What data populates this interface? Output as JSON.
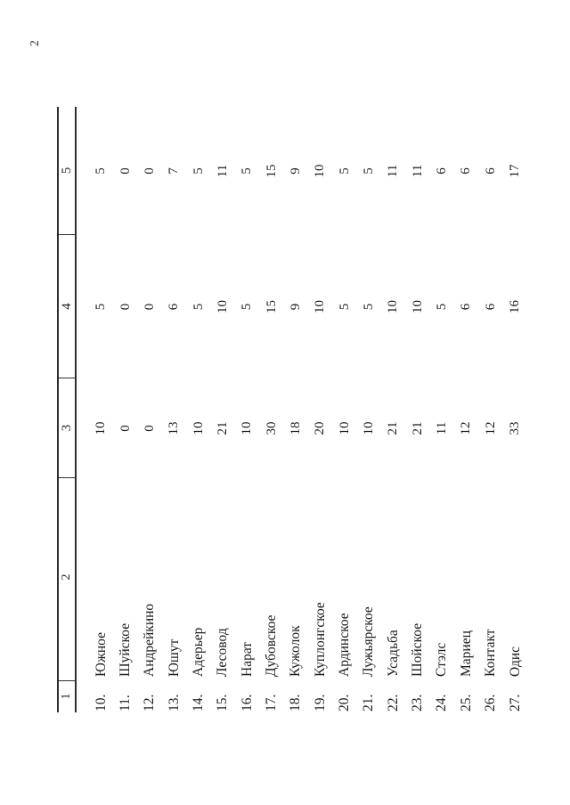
{
  "page": {
    "number": "2"
  },
  "table": {
    "headers": [
      "1",
      "2",
      "3",
      "4",
      "5"
    ],
    "rows": [
      {
        "num": "10.",
        "name": "Южное",
        "c3": "10",
        "c4": "5",
        "c5": "5"
      },
      {
        "num": "11.",
        "name": "Шуйское",
        "c3": "0",
        "c4": "0",
        "c5": "0"
      },
      {
        "num": "12.",
        "name": "Андрейкино",
        "c3": "0",
        "c4": "0",
        "c5": "0"
      },
      {
        "num": "13.",
        "name": "Юшут",
        "c3": "13",
        "c4": "6",
        "c5": "7"
      },
      {
        "num": "14.",
        "name": "Адерьер",
        "c3": "10",
        "c4": "5",
        "c5": "5"
      },
      {
        "num": "15.",
        "name": "Лесовод",
        "c3": "21",
        "c4": "10",
        "c5": "11"
      },
      {
        "num": "16.",
        "name": "Нарат",
        "c3": "10",
        "c4": "5",
        "c5": "5"
      },
      {
        "num": "17.",
        "name": "Дубовское",
        "c3": "30",
        "c4": "15",
        "c5": "15"
      },
      {
        "num": "18.",
        "name": "Кужолок",
        "c3": "18",
        "c4": "9",
        "c5": "9"
      },
      {
        "num": "19.",
        "name": "Куплонгское",
        "c3": "20",
        "c4": "10",
        "c5": "10"
      },
      {
        "num": "20.",
        "name": "Ардинское",
        "c3": "10",
        "c4": "5",
        "c5": "5"
      },
      {
        "num": "21.",
        "name": "Лужьярское",
        "c3": "10",
        "c4": "5",
        "c5": "5"
      },
      {
        "num": "22.",
        "name": "Усадьба",
        "c3": "21",
        "c4": "10",
        "c5": "11"
      },
      {
        "num": "23.",
        "name": "Шойское",
        "c3": "21",
        "c4": "10",
        "c5": "11"
      },
      {
        "num": "24.",
        "name": "Стэлс",
        "c3": "11",
        "c4": "5",
        "c5": "6"
      },
      {
        "num": "25.",
        "name": "Мариец",
        "c3": "12",
        "c4": "6",
        "c5": "6"
      },
      {
        "num": "26.",
        "name": "Контакт",
        "c3": "12",
        "c4": "6",
        "c5": "6"
      },
      {
        "num": "27.",
        "name": "Одис",
        "c3": "33",
        "c4": "16",
        "c5": "17"
      }
    ]
  }
}
